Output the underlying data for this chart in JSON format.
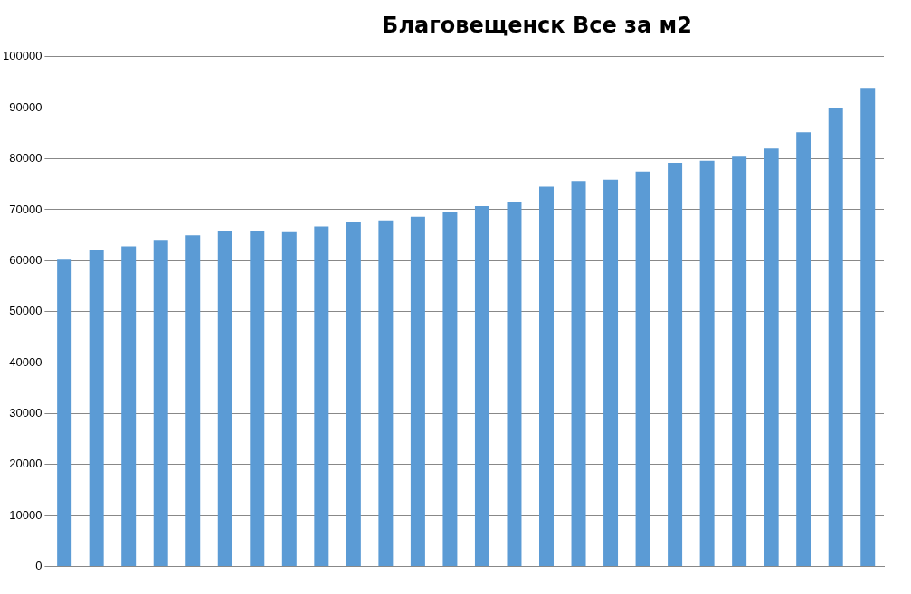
{
  "chart_data": {
    "type": "bar",
    "title": "Благовещенск Все за м2",
    "categories": [
      null,
      null,
      null,
      null,
      null,
      null,
      null,
      null,
      null,
      null,
      null,
      null,
      null,
      null,
      null,
      null,
      null,
      null,
      null,
      null,
      null,
      null,
      null,
      null,
      null,
      null
    ],
    "values": [
      60200,
      62000,
      62800,
      63900,
      65000,
      65800,
      65800,
      65600,
      66700,
      67600,
      67900,
      68600,
      69600,
      70700,
      71600,
      74500,
      75600,
      75900,
      77500,
      79200,
      79600,
      80400,
      82000,
      85200,
      90000,
      93900
    ],
    "color": "#5b9bd5",
    "ylim": [
      0,
      100000
    ],
    "yticks": [
      0,
      10000,
      20000,
      30000,
      40000,
      50000,
      60000,
      70000,
      80000,
      90000,
      100000
    ],
    "grid": "y",
    "legend": false
  }
}
